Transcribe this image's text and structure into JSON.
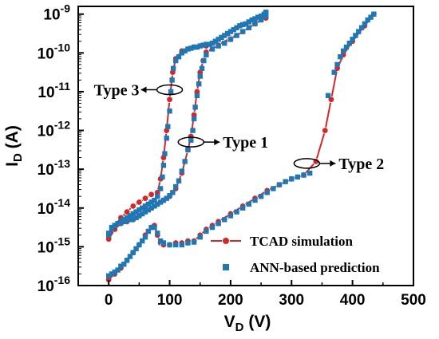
{
  "chart_data": {
    "type": "scatter",
    "xlabel": "V",
    "xlabel_sub": "D",
    "xlabel_unit": " (V)",
    "ylabel": "I",
    "ylabel_sub": "D",
    "ylabel_unit": " (A)",
    "xlim": [
      -50,
      500
    ],
    "ylim_log10": [
      -16,
      -8.8
    ],
    "y_scale": "log",
    "x_ticks": [
      0,
      100,
      200,
      300,
      400,
      500
    ],
    "x_tick_labels": [
      "0",
      "100",
      "200",
      "300",
      "400",
      "500"
    ],
    "y_ticks_exp": [
      -16,
      -15,
      -14,
      -13,
      -12,
      -11,
      -10,
      -9
    ],
    "y_tick_base": "10",
    "y_tick_exponents": [
      "-16",
      "-15",
      "-14",
      "-13",
      "-12",
      "-11",
      "-10",
      "-9"
    ],
    "legend": {
      "position": "bottom-right",
      "entries": [
        {
          "label": "TCAD simulation",
          "style": "line-circle",
          "color": "#d62728"
        },
        {
          "label": "ANN-based prediction",
          "style": "square",
          "color": "#1f77b4"
        }
      ]
    },
    "annotations": [
      {
        "text": "Type 3",
        "x": 100,
        "y_exp": -10.95,
        "arrow": "left"
      },
      {
        "text": "Type 1",
        "x": 135,
        "y_exp": -12.3,
        "arrow": "right"
      },
      {
        "text": "Type 2",
        "x": 325,
        "y_exp": -12.85,
        "arrow": "right"
      }
    ],
    "series": [
      {
        "style": "tcad",
        "color": "#d62728",
        "points": [
          [
            0,
            -14.8
          ],
          [
            10,
            -14.45
          ],
          [
            20,
            -14.25
          ],
          [
            30,
            -14.1
          ],
          [
            40,
            -13.95
          ],
          [
            50,
            -13.85
          ],
          [
            60,
            -13.75
          ],
          [
            70,
            -13.65
          ],
          [
            80,
            -13.6
          ],
          [
            85,
            -13.25
          ],
          [
            90,
            -12.7
          ],
          [
            95,
            -12.0
          ],
          [
            100,
            -11.2
          ],
          [
            105,
            -10.5
          ],
          [
            110,
            -10.15
          ],
          [
            120,
            -9.95
          ],
          [
            140,
            -9.85
          ],
          [
            160,
            -9.82
          ],
          [
            180,
            -9.78
          ],
          [
            200,
            -9.62
          ],
          [
            220,
            -9.45
          ],
          [
            240,
            -9.25
          ],
          [
            255,
            -9.1
          ],
          [
            258,
            -9.05
          ]
        ]
      },
      {
        "style": "tcad",
        "color": "#d62728",
        "points": [
          [
            0,
            -14.8
          ],
          [
            10,
            -14.55
          ],
          [
            20,
            -14.4
          ],
          [
            30,
            -14.35
          ],
          [
            40,
            -14.3
          ],
          [
            50,
            -14.2
          ],
          [
            60,
            -14.05
          ],
          [
            70,
            -14.0
          ],
          [
            80,
            -13.9
          ],
          [
            90,
            -13.8
          ],
          [
            100,
            -13.7
          ],
          [
            110,
            -13.5
          ],
          [
            120,
            -13.1
          ],
          [
            130,
            -12.5
          ],
          [
            135,
            -12.15
          ],
          [
            140,
            -11.6
          ],
          [
            145,
            -11.0
          ],
          [
            150,
            -10.5
          ],
          [
            155,
            -10.2
          ],
          [
            160,
            -9.98
          ],
          [
            180,
            -9.8
          ],
          [
            200,
            -9.65
          ],
          [
            220,
            -9.45
          ],
          [
            240,
            -9.25
          ],
          [
            258,
            -9.1
          ]
        ]
      },
      {
        "style": "tcad",
        "color": "#d62728",
        "points": [
          [
            0,
            -15.85
          ],
          [
            10,
            -15.7
          ],
          [
            20,
            -15.55
          ],
          [
            30,
            -15.35
          ],
          [
            40,
            -15.15
          ],
          [
            50,
            -14.95
          ],
          [
            60,
            -14.7
          ],
          [
            70,
            -14.5
          ],
          [
            75,
            -14.45
          ],
          [
            80,
            -14.7
          ],
          [
            85,
            -14.9
          ],
          [
            90,
            -14.95
          ],
          [
            100,
            -14.95
          ],
          [
            110,
            -14.9
          ],
          [
            120,
            -14.9
          ],
          [
            130,
            -14.85
          ],
          [
            140,
            -14.85
          ],
          [
            150,
            -14.7
          ],
          [
            160,
            -14.55
          ],
          [
            170,
            -14.45
          ],
          [
            180,
            -14.35
          ],
          [
            200,
            -14.15
          ],
          [
            220,
            -13.95
          ],
          [
            240,
            -13.75
          ],
          [
            260,
            -13.55
          ],
          [
            280,
            -13.4
          ],
          [
            300,
            -13.25
          ],
          [
            320,
            -13.15
          ],
          [
            340,
            -12.8
          ],
          [
            355,
            -12.0
          ],
          [
            365,
            -11.2
          ],
          [
            375,
            -10.4
          ],
          [
            385,
            -10.05
          ],
          [
            400,
            -9.7
          ],
          [
            420,
            -9.3
          ],
          [
            435,
            -9.0
          ]
        ]
      },
      {
        "style": "ann",
        "color": "#1f77b4",
        "points": [
          [
            0,
            -14.7
          ],
          [
            5,
            -14.55
          ],
          [
            10,
            -14.45
          ],
          [
            15,
            -14.4
          ],
          [
            20,
            -14.35
          ],
          [
            25,
            -14.3
          ],
          [
            30,
            -14.25
          ],
          [
            35,
            -14.2
          ],
          [
            40,
            -14.15
          ],
          [
            45,
            -14.1
          ],
          [
            50,
            -14.05
          ],
          [
            55,
            -14.0
          ],
          [
            60,
            -13.95
          ],
          [
            65,
            -13.9
          ],
          [
            70,
            -13.85
          ],
          [
            75,
            -13.8
          ],
          [
            80,
            -13.7
          ],
          [
            85,
            -13.5
          ],
          [
            88,
            -13.2
          ],
          [
            90,
            -12.9
          ],
          [
            92,
            -12.6
          ],
          [
            95,
            -12.2
          ],
          [
            97,
            -11.9
          ],
          [
            100,
            -11.5
          ],
          [
            102,
            -11.0
          ],
          [
            104,
            -10.7
          ],
          [
            106,
            -10.4
          ],
          [
            110,
            -10.2
          ],
          [
            115,
            -10.1
          ],
          [
            120,
            -10.0
          ],
          [
            125,
            -9.95
          ],
          [
            130,
            -9.9
          ],
          [
            135,
            -9.88
          ],
          [
            140,
            -9.85
          ],
          [
            145,
            -9.85
          ],
          [
            150,
            -9.82
          ],
          [
            155,
            -9.8
          ],
          [
            160,
            -9.78
          ],
          [
            165,
            -9.78
          ],
          [
            170,
            -9.75
          ],
          [
            175,
            -9.7
          ],
          [
            180,
            -9.65
          ],
          [
            185,
            -9.6
          ],
          [
            190,
            -9.55
          ],
          [
            195,
            -9.5
          ],
          [
            200,
            -9.45
          ],
          [
            205,
            -9.4
          ],
          [
            210,
            -9.35
          ],
          [
            215,
            -9.3
          ],
          [
            220,
            -9.27
          ],
          [
            225,
            -9.25
          ],
          [
            230,
            -9.2
          ],
          [
            235,
            -9.15
          ],
          [
            240,
            -9.12
          ],
          [
            245,
            -9.08
          ],
          [
            250,
            -9.05
          ],
          [
            255,
            -9.0
          ],
          [
            258,
            -8.95
          ]
        ]
      },
      {
        "style": "ann",
        "color": "#1f77b4",
        "points": [
          [
            0,
            -14.65
          ],
          [
            5,
            -14.5
          ],
          [
            10,
            -14.45
          ],
          [
            15,
            -14.4
          ],
          [
            20,
            -14.38
          ],
          [
            25,
            -14.35
          ],
          [
            30,
            -14.32
          ],
          [
            35,
            -14.3
          ],
          [
            40,
            -14.28
          ],
          [
            45,
            -14.25
          ],
          [
            50,
            -14.2
          ],
          [
            55,
            -14.15
          ],
          [
            60,
            -14.1
          ],
          [
            65,
            -14.05
          ],
          [
            70,
            -14.0
          ],
          [
            75,
            -13.95
          ],
          [
            80,
            -13.9
          ],
          [
            85,
            -13.85
          ],
          [
            90,
            -13.8
          ],
          [
            95,
            -13.75
          ],
          [
            100,
            -13.68
          ],
          [
            105,
            -13.6
          ],
          [
            110,
            -13.45
          ],
          [
            115,
            -13.3
          ],
          [
            120,
            -13.05
          ],
          [
            125,
            -12.8
          ],
          [
            130,
            -12.5
          ],
          [
            135,
            -12.25
          ],
          [
            138,
            -12.0
          ],
          [
            140,
            -11.7
          ],
          [
            142,
            -11.4
          ],
          [
            145,
            -11.1
          ],
          [
            148,
            -10.8
          ],
          [
            150,
            -10.6
          ],
          [
            153,
            -10.4
          ],
          [
            156,
            -10.2
          ],
          [
            160,
            -10.05
          ],
          [
            170,
            -9.9
          ],
          [
            180,
            -9.82
          ],
          [
            190,
            -9.75
          ],
          [
            200,
            -9.65
          ],
          [
            210,
            -9.55
          ],
          [
            220,
            -9.45
          ],
          [
            230,
            -9.35
          ],
          [
            240,
            -9.25
          ],
          [
            250,
            -9.15
          ],
          [
            258,
            -9.05
          ]
        ]
      },
      {
        "style": "ann",
        "color": "#1f77b4",
        "points": [
          [
            0,
            -15.75
          ],
          [
            5,
            -15.7
          ],
          [
            10,
            -15.65
          ],
          [
            15,
            -15.6
          ],
          [
            20,
            -15.5
          ],
          [
            25,
            -15.45
          ],
          [
            30,
            -15.35
          ],
          [
            35,
            -15.25
          ],
          [
            40,
            -15.15
          ],
          [
            45,
            -15.05
          ],
          [
            50,
            -14.95
          ],
          [
            55,
            -14.85
          ],
          [
            60,
            -14.75
          ],
          [
            65,
            -14.6
          ],
          [
            70,
            -14.5
          ],
          [
            75,
            -14.5
          ],
          [
            80,
            -14.65
          ],
          [
            85,
            -14.85
          ],
          [
            90,
            -14.9
          ],
          [
            100,
            -14.95
          ],
          [
            110,
            -14.95
          ],
          [
            120,
            -14.95
          ],
          [
            130,
            -14.9
          ],
          [
            140,
            -14.88
          ],
          [
            150,
            -14.75
          ],
          [
            160,
            -14.6
          ],
          [
            170,
            -14.5
          ],
          [
            180,
            -14.4
          ],
          [
            190,
            -14.3
          ],
          [
            200,
            -14.2
          ],
          [
            210,
            -14.1
          ],
          [
            220,
            -14.0
          ],
          [
            230,
            -13.9
          ],
          [
            240,
            -13.8
          ],
          [
            250,
            -13.7
          ],
          [
            260,
            -13.6
          ],
          [
            270,
            -13.5
          ],
          [
            280,
            -13.4
          ],
          [
            290,
            -13.32
          ],
          [
            300,
            -13.25
          ],
          [
            310,
            -13.2
          ],
          [
            320,
            -13.15
          ],
          [
            330,
            -13.1
          ],
          [
            360,
            -11.1
          ],
          [
            370,
            -10.5
          ],
          [
            375,
            -10.3
          ],
          [
            380,
            -10.1
          ],
          [
            385,
            -9.95
          ],
          [
            390,
            -9.85
          ],
          [
            395,
            -9.75
          ],
          [
            400,
            -9.65
          ],
          [
            405,
            -9.55
          ],
          [
            410,
            -9.45
          ],
          [
            415,
            -9.35
          ],
          [
            420,
            -9.25
          ],
          [
            425,
            -9.15
          ],
          [
            430,
            -9.08
          ],
          [
            435,
            -9.0
          ]
        ]
      }
    ]
  }
}
